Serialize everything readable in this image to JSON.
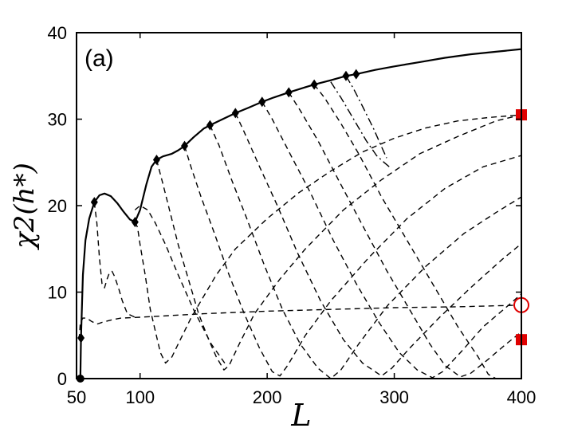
{
  "chart_data": {
    "type": "line",
    "panel_label": "(a)",
    "xlabel": "L",
    "ylabel": "χ2(h*)",
    "xlim": [
      50,
      400
    ],
    "ylim": [
      0,
      40
    ],
    "xticks": [
      50,
      100,
      200,
      300,
      400
    ],
    "yticks": [
      0,
      10,
      20,
      30,
      40
    ],
    "grid": false,
    "series": [
      {
        "style": "solid",
        "color": "#000000",
        "points": [
          [
            53,
            0
          ],
          [
            53.5,
            4.7
          ],
          [
            55,
            12
          ],
          [
            57,
            16
          ],
          [
            60,
            18.5
          ],
          [
            64,
            20.4
          ],
          [
            68,
            21.2
          ],
          [
            72,
            21.4
          ],
          [
            77,
            21.1
          ],
          [
            82,
            20.3
          ],
          [
            87,
            19.3
          ],
          [
            92,
            18.4
          ],
          [
            96,
            18.1
          ],
          [
            100,
            19.5
          ],
          [
            105,
            22.5
          ],
          [
            109,
            24.5
          ],
          [
            113,
            25.3
          ],
          [
            118,
            25.7
          ],
          [
            125,
            26
          ],
          [
            130,
            26.4
          ],
          [
            135,
            26.9
          ],
          [
            142,
            27.9
          ],
          [
            150,
            28.9
          ],
          [
            155,
            29.3
          ],
          [
            165,
            30
          ],
          [
            175,
            30.7
          ],
          [
            185,
            31.3
          ],
          [
            196,
            32
          ],
          [
            205,
            32.5
          ],
          [
            217,
            33.1
          ],
          [
            228,
            33.6
          ],
          [
            237,
            34
          ],
          [
            250,
            34.5
          ],
          [
            262,
            35
          ],
          [
            270,
            35.2
          ],
          [
            285,
            35.7
          ],
          [
            300,
            36.1
          ],
          [
            320,
            36.6
          ],
          [
            340,
            37.1
          ],
          [
            360,
            37.5
          ],
          [
            380,
            37.8
          ],
          [
            400,
            38.1
          ]
        ]
      },
      {
        "style": "dashed",
        "color": "#000000",
        "points": [
          [
            52,
            4.5
          ],
          [
            53,
            6.5
          ],
          [
            55,
            7
          ],
          [
            58,
            7
          ],
          [
            62,
            6.6
          ],
          [
            66,
            6.3
          ],
          [
            70,
            6.5
          ],
          [
            78,
            6.8
          ],
          [
            85,
            7
          ],
          [
            100,
            7.1
          ],
          [
            150,
            7.5
          ],
          [
            200,
            7.8
          ],
          [
            250,
            8
          ],
          [
            300,
            8.2
          ],
          [
            350,
            8.3
          ],
          [
            400,
            8.5
          ]
        ]
      },
      {
        "style": "dashed",
        "color": "#000000",
        "points": [
          [
            64,
            20.4
          ],
          [
            66,
            18
          ],
          [
            68,
            14
          ],
          [
            70,
            11
          ],
          [
            72,
            10.5
          ],
          [
            74,
            11.5
          ],
          [
            76,
            12.3
          ],
          [
            78,
            12.4
          ],
          [
            80,
            11.8
          ],
          [
            83,
            10.5
          ],
          [
            86,
            9
          ],
          [
            90,
            7.5
          ],
          [
            96,
            7.1
          ]
        ]
      },
      {
        "style": "dashed",
        "color": "#000000",
        "points": [
          [
            96,
            18.1
          ],
          [
            98,
            17.5
          ],
          [
            100,
            15.5
          ],
          [
            104,
            12
          ],
          [
            108,
            8
          ],
          [
            112,
            5.5
          ],
          [
            116,
            3
          ],
          [
            120,
            1.8
          ],
          [
            125,
            2.5
          ],
          [
            130,
            4
          ],
          [
            140,
            7
          ],
          [
            150,
            9.5
          ],
          [
            160,
            12
          ],
          [
            175,
            15
          ],
          [
            200,
            18.5
          ],
          [
            225,
            21.5
          ],
          [
            250,
            24
          ],
          [
            275,
            26.2
          ],
          [
            300,
            27.8
          ],
          [
            325,
            29
          ],
          [
            350,
            29.8
          ],
          [
            375,
            30.2
          ],
          [
            400,
            30.5
          ]
        ]
      },
      {
        "style": "dashed",
        "color": "#000000",
        "points": [
          [
            113,
            25.3
          ],
          [
            118,
            22.5
          ],
          [
            124,
            19
          ],
          [
            130,
            15.5
          ],
          [
            138,
            11.5
          ],
          [
            146,
            7.5
          ],
          [
            154,
            4.5
          ],
          [
            160,
            2.5
          ],
          [
            166,
            1
          ],
          [
            170,
            1.5
          ],
          [
            178,
            4
          ],
          [
            190,
            7.5
          ],
          [
            210,
            11.5
          ],
          [
            230,
            15
          ],
          [
            260,
            19.5
          ],
          [
            290,
            23
          ],
          [
            320,
            26
          ],
          [
            350,
            28
          ],
          [
            380,
            29.8
          ],
          [
            400,
            30.5
          ]
        ]
      },
      {
        "style": "dashed",
        "color": "#000000",
        "points": [
          [
            96,
            19.5
          ],
          [
            100,
            20
          ],
          [
            106,
            19.5
          ],
          [
            112,
            18
          ],
          [
            120,
            15.5
          ],
          [
            130,
            12
          ],
          [
            142,
            8
          ],
          [
            156,
            4
          ],
          [
            168,
            1.5
          ]
        ]
      },
      {
        "style": "dashed",
        "color": "#000000",
        "points": [
          [
            135,
            26.9
          ],
          [
            140,
            24.5
          ],
          [
            148,
            21
          ],
          [
            158,
            17
          ],
          [
            170,
            12
          ],
          [
            182,
            7.5
          ],
          [
            194,
            3.5
          ],
          [
            204,
            0.8
          ],
          [
            210,
            0.3
          ],
          [
            216,
            1.5
          ],
          [
            230,
            5
          ],
          [
            250,
            9
          ],
          [
            280,
            14
          ],
          [
            310,
            18.5
          ],
          [
            340,
            22
          ],
          [
            370,
            24.5
          ],
          [
            400,
            25.8
          ]
        ]
      },
      {
        "style": "dashed",
        "color": "#000000",
        "points": [
          [
            155,
            29.3
          ],
          [
            162,
            27
          ],
          [
            172,
            23
          ],
          [
            184,
            18.5
          ],
          [
            198,
            13
          ],
          [
            212,
            8
          ],
          [
            226,
            4
          ],
          [
            240,
            1.2
          ],
          [
            250,
            0
          ],
          [
            258,
            1
          ],
          [
            272,
            4
          ],
          [
            295,
            8.5
          ],
          [
            325,
            13
          ],
          [
            355,
            16.8
          ],
          [
            380,
            19.2
          ],
          [
            400,
            21
          ]
        ]
      },
      {
        "style": "dashed",
        "color": "#000000",
        "points": [
          [
            175,
            30.7
          ],
          [
            182,
            28.5
          ],
          [
            194,
            24.5
          ],
          [
            208,
            20
          ],
          [
            224,
            14.5
          ],
          [
            242,
            9
          ],
          [
            260,
            4.5
          ],
          [
            275,
            1.8
          ],
          [
            290,
            0.3
          ],
          [
            298,
            1.2
          ],
          [
            312,
            3.5
          ],
          [
            335,
            7
          ],
          [
            360,
            10.5
          ],
          [
            385,
            13.8
          ],
          [
            400,
            15.6
          ]
        ]
      },
      {
        "style": "dashed",
        "color": "#000000",
        "points": [
          [
            196,
            32
          ],
          [
            204,
            30
          ],
          [
            218,
            26
          ],
          [
            234,
            21.5
          ],
          [
            252,
            16
          ],
          [
            270,
            11
          ],
          [
            288,
            6.5
          ],
          [
            304,
            3
          ],
          [
            318,
            1
          ],
          [
            330,
            0.1
          ],
          [
            338,
            0.8
          ],
          [
            352,
            3
          ],
          [
            370,
            6
          ],
          [
            390,
            8.5
          ],
          [
            400,
            9.8
          ]
        ]
      },
      {
        "style": "dashed",
        "color": "#000000",
        "points": [
          [
            217,
            33.1
          ],
          [
            226,
            31
          ],
          [
            240,
            27.5
          ],
          [
            256,
            23
          ],
          [
            274,
            18
          ],
          [
            294,
            12.5
          ],
          [
            312,
            8
          ],
          [
            328,
            4
          ],
          [
            340,
            1.5
          ],
          [
            352,
            0.2
          ],
          [
            360,
            0.6
          ],
          [
            372,
            2
          ],
          [
            388,
            4
          ],
          [
            400,
            5.4
          ]
        ]
      },
      {
        "style": "dashed",
        "color": "#000000",
        "points": [
          [
            237,
            34
          ],
          [
            245,
            32.5
          ],
          [
            258,
            29.5
          ],
          [
            272,
            26
          ],
          [
            290,
            21
          ],
          [
            310,
            16
          ],
          [
            330,
            11
          ],
          [
            350,
            6
          ],
          [
            366,
            2.5
          ],
          [
            374,
            0.5
          ],
          [
            380,
            0
          ]
        ]
      },
      {
        "style": "dashdot",
        "color": "#000000",
        "points": [
          [
            250,
            34.3
          ],
          [
            258,
            32.5
          ],
          [
            268,
            30
          ],
          [
            278,
            27.5
          ],
          [
            286,
            25.8
          ],
          [
            292,
            25
          ],
          [
            296,
            24.5
          ]
        ]
      },
      {
        "style": "dashdot",
        "color": "#000000",
        "points": [
          [
            262,
            35
          ],
          [
            268,
            33.5
          ],
          [
            276,
            31.2
          ],
          [
            284,
            28.8
          ],
          [
            290,
            26.8
          ],
          [
            294,
            25.5
          ]
        ]
      }
    ],
    "diamond_markers": [
      [
        53.5,
        4.7
      ],
      [
        64,
        20.4
      ],
      [
        96,
        18.1
      ],
      [
        113,
        25.3
      ],
      [
        135,
        26.9
      ],
      [
        155,
        29.3
      ],
      [
        175,
        30.7
      ],
      [
        196,
        32
      ],
      [
        217,
        33.1
      ],
      [
        237,
        34
      ],
      [
        262,
        35
      ],
      [
        270,
        35.2
      ]
    ],
    "filled_circle_markers": [
      [
        53,
        0
      ]
    ],
    "red_square_markers": [
      [
        400,
        30.5
      ],
      [
        400,
        4.5
      ]
    ],
    "open_circle_markers": [
      [
        400,
        8.5
      ]
    ],
    "colors": {
      "line": "#000000",
      "highlight": "#e00000"
    }
  }
}
